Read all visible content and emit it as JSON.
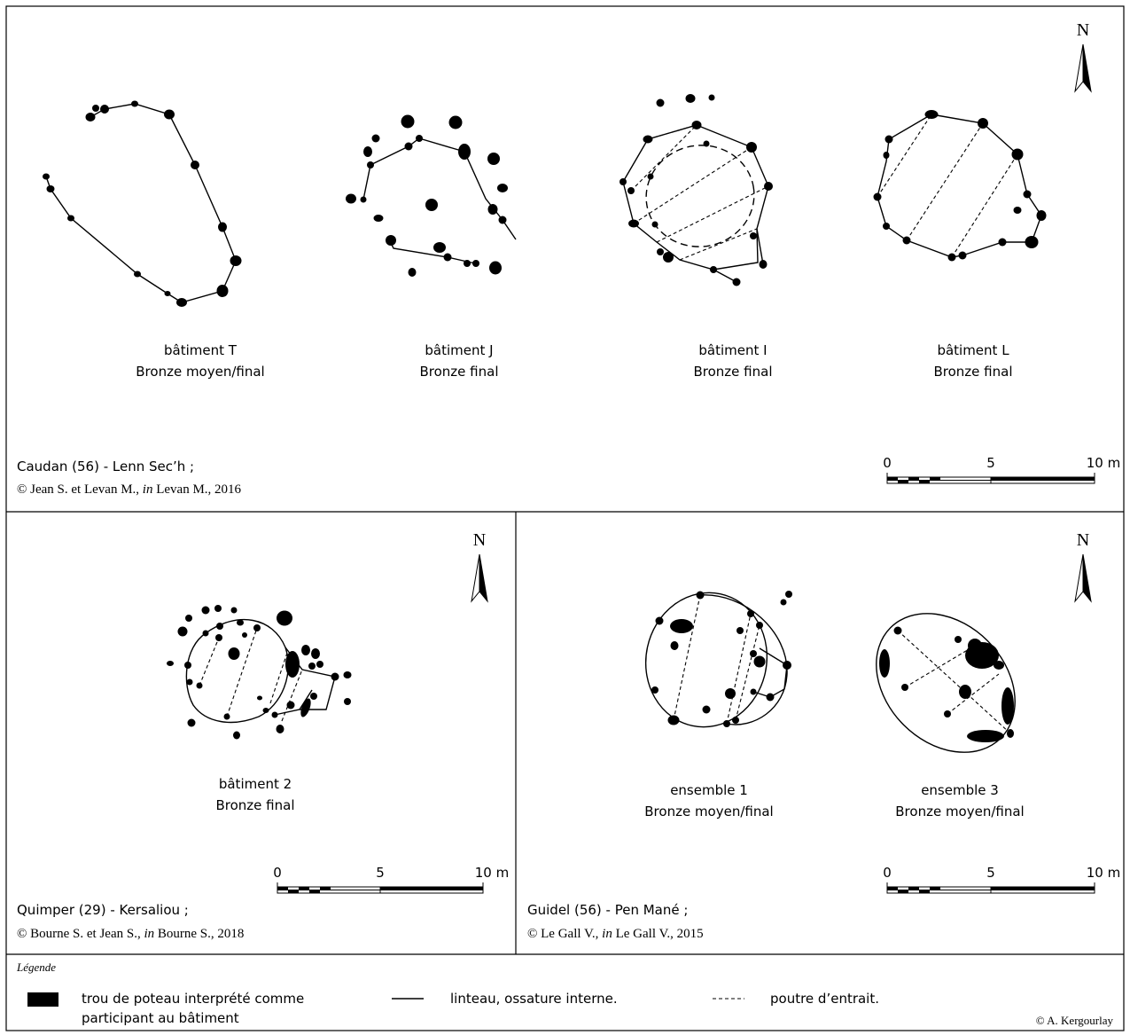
{
  "panels": {
    "caudan": {
      "buildings": [
        {
          "name": "bâtiment T",
          "period": "Bronze moyen/final"
        },
        {
          "name": "bâtiment J",
          "period": "Bronze final"
        },
        {
          "name": "bâtiment I",
          "period": "Bronze final"
        },
        {
          "name": "bâtiment L",
          "period": "Bronze final"
        }
      ],
      "site": "Caudan (56) - Lenn Sec’h ;",
      "credit_prefix": "© Jean S. et Levan M., ",
      "credit_in": "in",
      "credit_suffix": "  Levan M., 2016",
      "north": "N",
      "scale": {
        "zero": "0",
        "mid": "5",
        "end": "10 m"
      }
    },
    "quimper": {
      "buildings": [
        {
          "name": "bâtiment 2",
          "period": "Bronze final"
        }
      ],
      "site": "Quimper (29) - Kersaliou ;",
      "credit_prefix": "© Bourne S. et Jean S., ",
      "credit_in": "in",
      "credit_suffix": "  Bourne S., 2018",
      "north": "N",
      "scale": {
        "zero": "0",
        "mid": "5",
        "end": "10 m"
      }
    },
    "guidel": {
      "buildings": [
        {
          "name": "ensemble 1",
          "period": "Bronze moyen/final"
        },
        {
          "name": "ensemble 3",
          "period": "Bronze moyen/final"
        }
      ],
      "site": "Guidel (56) - Pen Mané ;",
      "credit_prefix": "© Le Gall V.,  ",
      "credit_in": "in",
      "credit_suffix": "  Le Gall V., 2015",
      "north": "N",
      "scale": {
        "zero": "0",
        "mid": "5",
        "end": "10 m"
      }
    }
  },
  "legend": {
    "title": "Légende",
    "post_hole_line1": "trou de poteau interprété comme",
    "post_hole_line2": "participant au bâtiment",
    "solid_line": "linteau, ossature interne.",
    "dashed_line": "poutre d’entrait."
  },
  "copyright": "© A. Kergourlay"
}
